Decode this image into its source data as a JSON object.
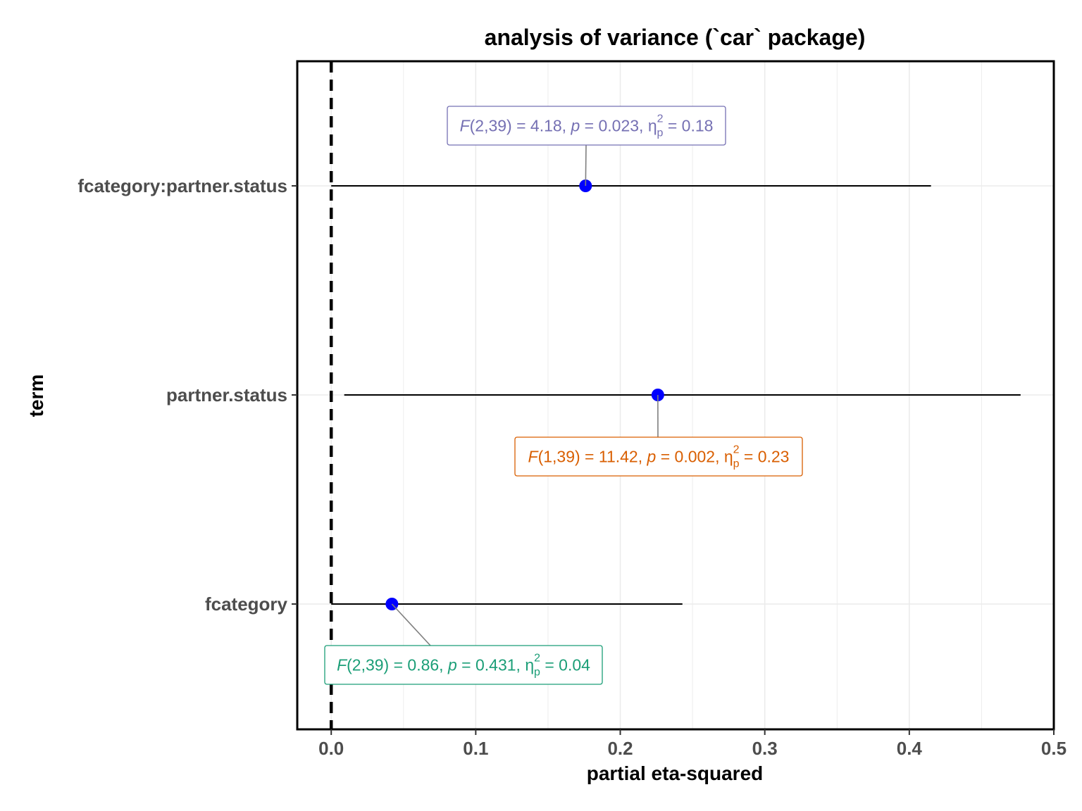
{
  "chart_data": {
    "type": "forest",
    "title": "analysis of variance (`car` package)",
    "xlabel": "partial eta-squared",
    "ylabel": "term",
    "xlim": [
      -0.0235,
      0.5
    ],
    "x_ticks": [
      "0.0",
      "0.1",
      "0.2",
      "0.3",
      "0.4",
      "0.5"
    ],
    "x_tick_values": [
      0,
      0.1,
      0.2,
      0.3,
      0.4,
      0.5
    ],
    "reference_line": 0,
    "grid": true,
    "point_color": "#0000ff",
    "terms": [
      {
        "term": "fcategory:partner.status",
        "estimate": 0.176,
        "ci_low": 0.0,
        "ci_high": 0.415,
        "label_color": "#7570b3",
        "annotation": {
          "stat": "F",
          "df": "(2,39)",
          "stat_value": "4.18",
          "p_label": "p",
          "p_value": "0.023",
          "eta_symbol": "η",
          "eta_sub": "p",
          "eta_sup": "2",
          "eta_value": "0.18"
        }
      },
      {
        "term": "partner.status",
        "estimate": 0.226,
        "ci_low": 0.009,
        "ci_high": 0.477,
        "label_color": "#d95f02",
        "annotation": {
          "stat": "F",
          "df": "(1,39)",
          "stat_value": "11.42",
          "p_label": "p",
          "p_value": "0.002",
          "eta_symbol": "η",
          "eta_sub": "p",
          "eta_sup": "2",
          "eta_value": "0.23"
        }
      },
      {
        "term": "fcategory",
        "estimate": 0.042,
        "ci_low": 0.0,
        "ci_high": 0.243,
        "label_color": "#1b9e77",
        "annotation": {
          "stat": "F",
          "df": "(2,39)",
          "stat_value": "0.86",
          "p_label": "p",
          "p_value": "0.431",
          "eta_symbol": "η",
          "eta_sub": "p",
          "eta_sup": "2",
          "eta_value": "0.04"
        }
      }
    ]
  }
}
